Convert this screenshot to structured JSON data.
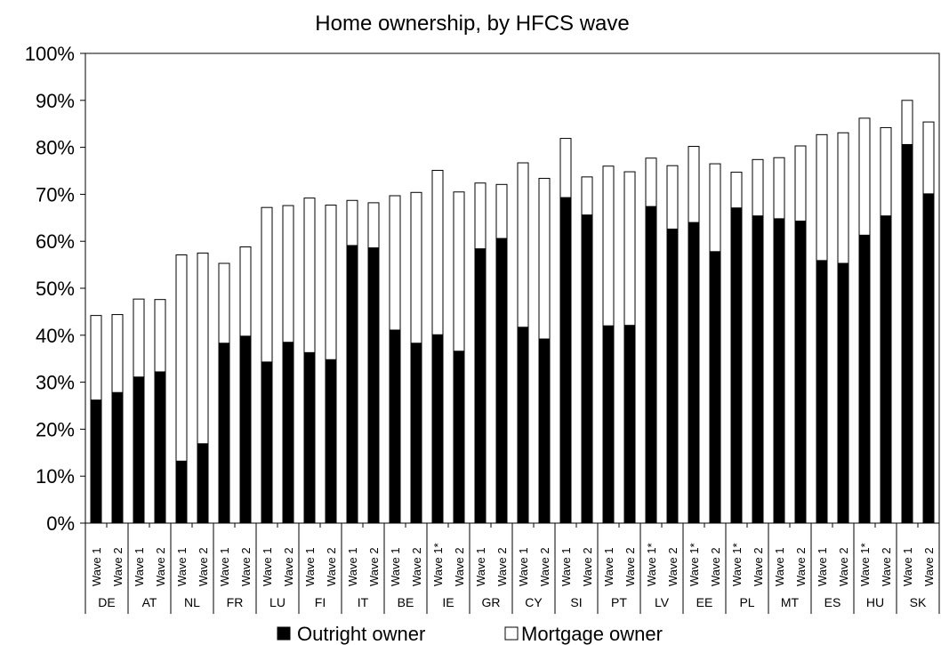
{
  "chart_data": {
    "type": "bar",
    "stacked": true,
    "title": "Home ownership, by HFCS wave",
    "xlabel": "",
    "ylabel": "",
    "ylim": [
      0,
      100
    ],
    "y_ticks": [
      "0%",
      "10%",
      "20%",
      "30%",
      "40%",
      "50%",
      "60%",
      "70%",
      "80%",
      "90%",
      "100%"
    ],
    "legend_position": "bottom",
    "grid": false,
    "countries": [
      "DE",
      "AT",
      "NL",
      "FR",
      "LU",
      "FI",
      "IT",
      "BE",
      "IE",
      "GR",
      "CY",
      "SI",
      "PT",
      "LV",
      "EE",
      "PL",
      "MT",
      "ES",
      "HU",
      "SK"
    ],
    "categories": [
      "Wave 1",
      "Wave 2",
      "Wave 1",
      "Wave 2",
      "Wave 1",
      "Wave 2",
      "Wave 1",
      "Wave 2",
      "Wave 1",
      "Wave 2",
      "Wave 1",
      "Wave 2",
      "Wave 1",
      "Wave 2",
      "Wave 1",
      "Wave 2",
      "Wave 1*",
      "Wave 2",
      "Wave 1",
      "Wave 2",
      "Wave 1",
      "Wave 2",
      "Wave 1",
      "Wave 2",
      "Wave 1",
      "Wave 2",
      "Wave 1*",
      "Wave 2",
      "Wave 1*",
      "Wave 2",
      "Wave 1*",
      "Wave 2",
      "Wave 1",
      "Wave 2",
      "Wave 1",
      "Wave 2",
      "Wave 1*",
      "Wave 2",
      "Wave 1",
      "Wave 2"
    ],
    "series": [
      {
        "name": "Outright owner",
        "color": "#000000",
        "values": [
          26.2,
          27.8,
          31.1,
          32.2,
          13.2,
          16.9,
          38.3,
          39.8,
          34.3,
          38.5,
          36.3,
          34.8,
          59.1,
          58.6,
          41.1,
          38.3,
          40.1,
          36.6,
          58.4,
          60.6,
          41.7,
          39.2,
          69.3,
          65.6,
          42.0,
          42.1,
          67.4,
          62.6,
          64.0,
          57.8,
          67.1,
          65.4,
          64.8,
          64.3,
          55.9,
          55.3,
          61.3,
          65.4,
          80.6,
          70.1
        ]
      },
      {
        "name": "Mortgage owner",
        "color": "#ffffff",
        "values": [
          18.0,
          16.6,
          16.6,
          15.4,
          43.9,
          40.6,
          17.0,
          19.0,
          32.9,
          29.1,
          32.9,
          32.9,
          9.6,
          9.6,
          28.6,
          32.1,
          35.0,
          33.9,
          14.0,
          11.5,
          35.0,
          34.2,
          12.6,
          8.1,
          34.0,
          32.7,
          10.3,
          13.5,
          16.2,
          18.7,
          7.6,
          12.0,
          13.0,
          16.0,
          26.8,
          27.8,
          24.9,
          18.8,
          9.4,
          15.3
        ]
      }
    ]
  }
}
